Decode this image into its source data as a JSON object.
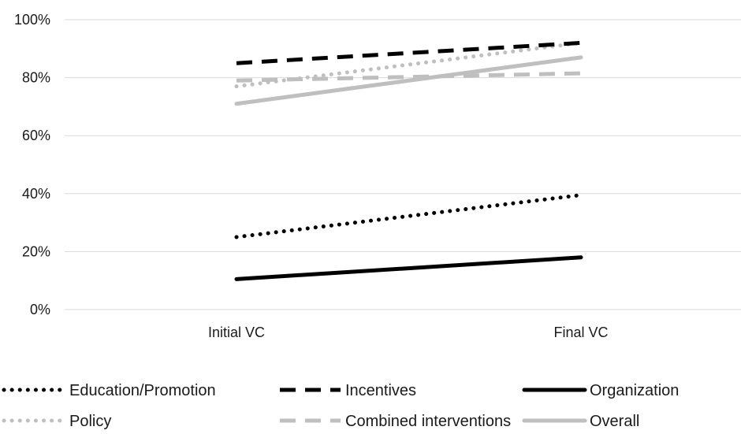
{
  "chart_data": {
    "type": "line",
    "categories": [
      "Initial VC",
      "Final VC"
    ],
    "ylim": [
      0,
      100
    ],
    "yticks": [
      0,
      20,
      40,
      60,
      80,
      100
    ],
    "ytick_labels": [
      "0%",
      "20%",
      "40%",
      "60%",
      "80%",
      "100%"
    ],
    "grid": true,
    "legend_position": "bottom",
    "series": [
      {
        "name": "Education/Promotion",
        "values": [
          25,
          39.5
        ],
        "color": "#000000",
        "style": "dotted"
      },
      {
        "name": "Incentives",
        "values": [
          85,
          92
        ],
        "color": "#000000",
        "style": "dashed"
      },
      {
        "name": "Organization",
        "values": [
          10.5,
          18
        ],
        "color": "#000000",
        "style": "solid"
      },
      {
        "name": "Policy",
        "values": [
          77,
          92
        ],
        "color": "#bfbfbf",
        "style": "dotted"
      },
      {
        "name": "Combined interventions",
        "values": [
          79,
          81.5
        ],
        "color": "#bfbfbf",
        "style": "dashed"
      },
      {
        "name": "Overall",
        "values": [
          71,
          87
        ],
        "color": "#bfbfbf",
        "style": "solid"
      }
    ]
  }
}
